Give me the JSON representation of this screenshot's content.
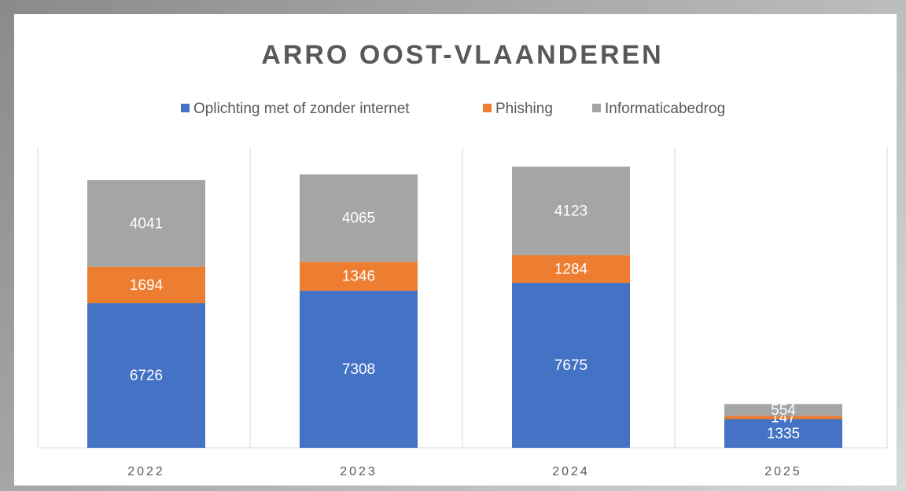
{
  "chart_data": {
    "type": "stacked_bar",
    "title": "ARRO OOST-VLAANDEREN",
    "categories": [
      "2022",
      "2023",
      "2024",
      "2025"
    ],
    "series": [
      {
        "name": "Oplichting met of zonder internet",
        "color": "#4472c4",
        "values": [
          6726,
          7308,
          7675,
          1335
        ]
      },
      {
        "name": "Phishing",
        "color": "#ed7d31",
        "values": [
          1694,
          1346,
          1284,
          147
        ]
      },
      {
        "name": "Informaticabedrog",
        "color": "#a5a5a5",
        "values": [
          4041,
          4065,
          4123,
          554
        ]
      }
    ],
    "ylim": [
      0,
      14000
    ],
    "legend": "top"
  }
}
